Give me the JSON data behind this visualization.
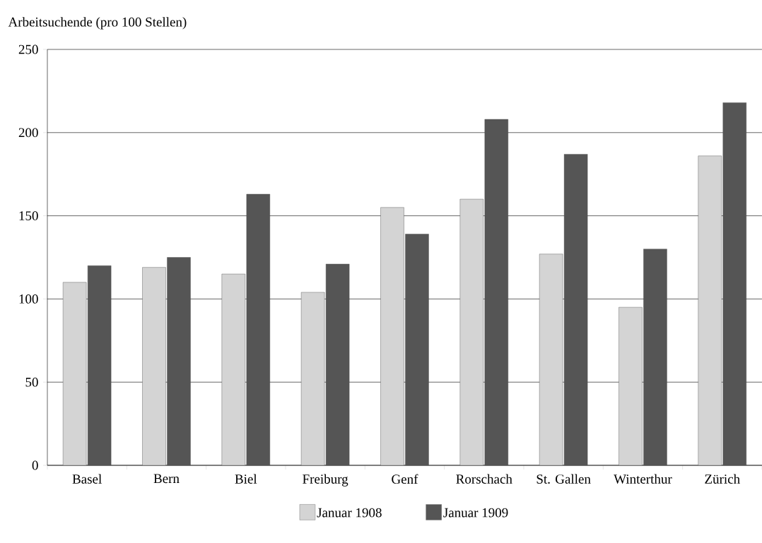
{
  "chart_data": {
    "type": "bar",
    "title": "Arbeitsuchende (pro 100 Stellen)",
    "categories": [
      "Basel",
      "Bern",
      "Biel",
      "Freiburg",
      "Genf",
      "Rorschach",
      "St. Gallen",
      "Winterthur",
      "Zürich"
    ],
    "series": [
      {
        "name": "Januar 1908",
        "color": "#d4d4d4",
        "values": [
          110,
          119,
          115,
          104,
          155,
          160,
          127,
          95,
          186
        ]
      },
      {
        "name": "Januar 1909",
        "color": "#555555",
        "values": [
          120,
          125,
          163,
          121,
          139,
          208,
          187,
          130,
          218
        ]
      }
    ],
    "ylim": [
      0,
      250
    ],
    "yticks": [
      0,
      50,
      100,
      150,
      200,
      250
    ],
    "grid": "y",
    "legend": "bottom"
  }
}
